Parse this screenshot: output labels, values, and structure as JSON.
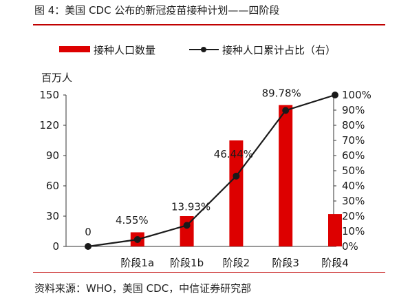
{
  "header": {
    "title": "图 4：美国 CDC 公布的新冠疫苗接种计划——四阶段",
    "source": "资料来源：WHO，美国 CDC，中信证券研究部"
  },
  "colors": {
    "bar": "#dd0000",
    "line": "#1a1a1a",
    "rule": "#c00000"
  },
  "chart_data": {
    "type": "bar",
    "title": "",
    "categories": [
      "",
      "阶段1a",
      "阶段1b",
      "阶段2",
      "阶段3",
      "阶段4"
    ],
    "ylabel": "百万人",
    "ylim": [
      0,
      150
    ],
    "yticks": [
      "0",
      "30",
      "60",
      "90",
      "120",
      "150"
    ],
    "y2lim": [
      0,
      1
    ],
    "y2ticks": [
      "0%",
      "10%",
      "20%",
      "30%",
      "40%",
      "50%",
      "60%",
      "70%",
      "80%",
      "90%",
      "100%"
    ],
    "legend_position": "top",
    "series": [
      {
        "name": "接种人口数量",
        "kind": "bar",
        "axis": "left",
        "values": [
          0,
          14,
          30,
          105,
          140,
          32
        ]
      },
      {
        "name": "接种人口累计占比（右）",
        "kind": "line",
        "axis": "right",
        "values": [
          0,
          0.0455,
          0.1393,
          0.4644,
          0.8978,
          1.0
        ],
        "labels": [
          "0",
          "4.55%",
          "13.93%",
          "46.44%",
          "89.78%",
          ""
        ]
      }
    ]
  }
}
